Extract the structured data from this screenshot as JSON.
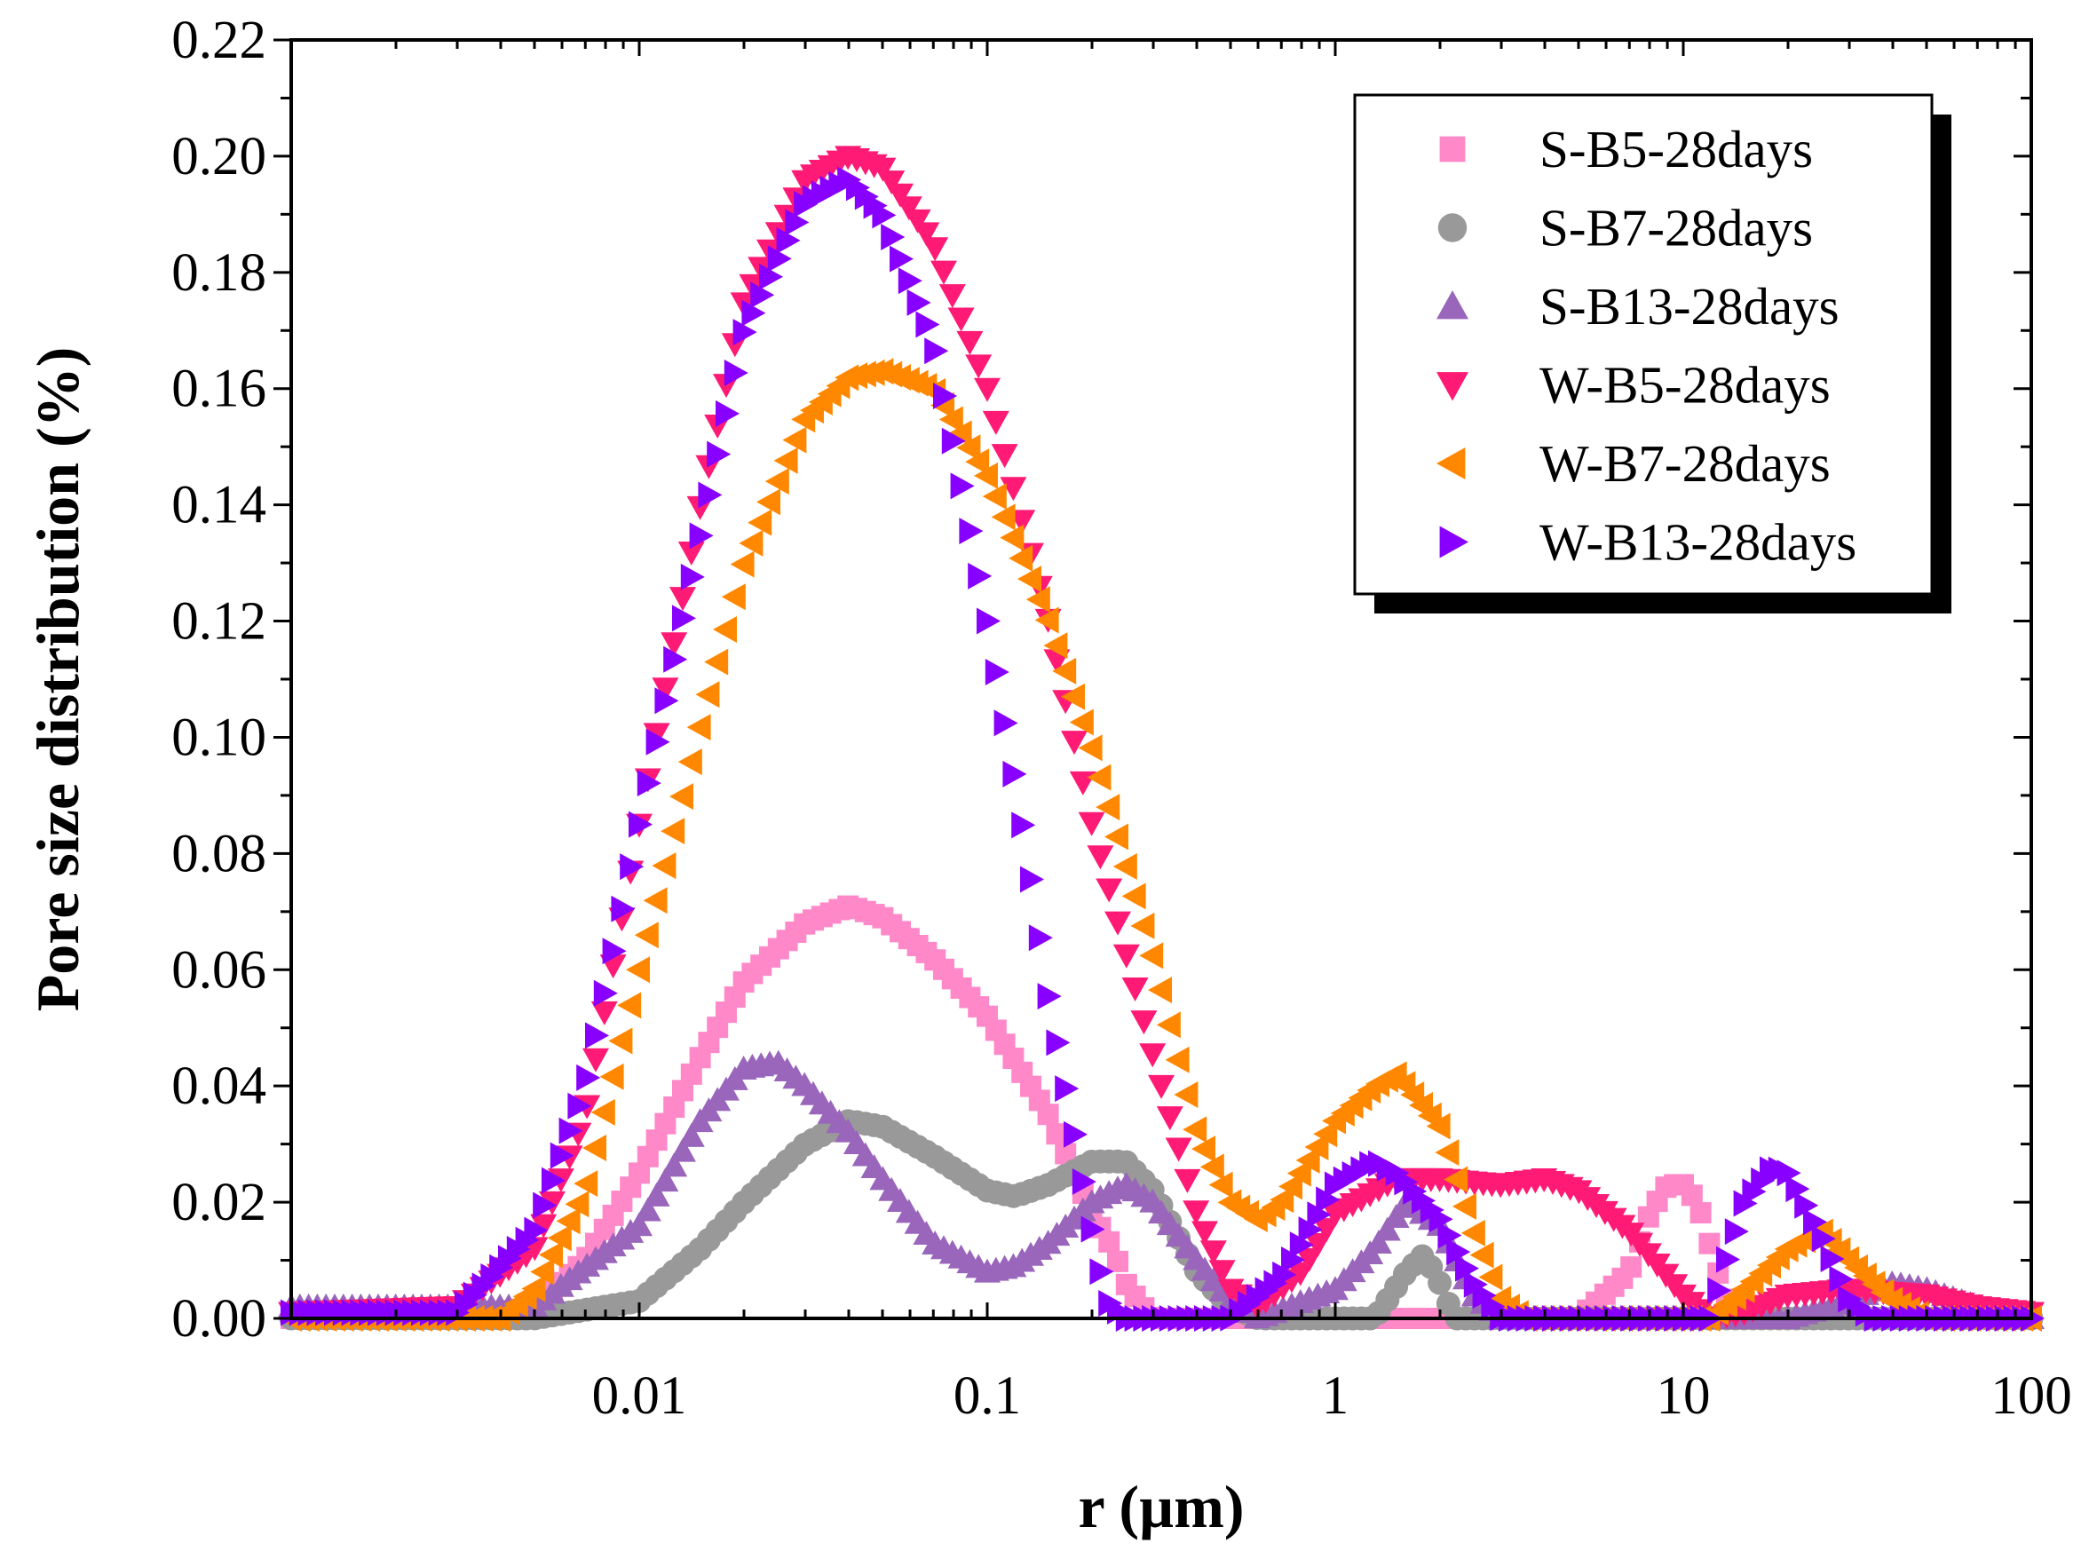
{
  "chart_data": {
    "type": "scatter",
    "xlabel": "r (µm)",
    "ylabel": "Pore size distribution (%)",
    "xscale": "log",
    "xlim": [
      0.001,
      100
    ],
    "ylim": [
      0,
      0.22
    ],
    "xticks": [
      {
        "value": 0.01,
        "label": "0.01"
      },
      {
        "value": 0.1,
        "label": "0.1"
      },
      {
        "value": 1,
        "label": "1"
      },
      {
        "value": 10,
        "label": "10"
      },
      {
        "value": 100,
        "label": "100"
      }
    ],
    "yticks": [
      {
        "value": 0.0,
        "label": "0.00"
      },
      {
        "value": 0.02,
        "label": "0.02"
      },
      {
        "value": 0.04,
        "label": "0.04"
      },
      {
        "value": 0.06,
        "label": "0.06"
      },
      {
        "value": 0.08,
        "label": "0.08"
      },
      {
        "value": 0.1,
        "label": "0.10"
      },
      {
        "value": 0.12,
        "label": "0.12"
      },
      {
        "value": 0.14,
        "label": "0.14"
      },
      {
        "value": 0.16,
        "label": "0.16"
      },
      {
        "value": 0.18,
        "label": "0.18"
      },
      {
        "value": 0.2,
        "label": "0.20"
      },
      {
        "value": 0.22,
        "label": "0.22"
      }
    ],
    "grid": false,
    "legend_position": "top-right",
    "series": [
      {
        "name": "S-B5-28days",
        "marker": "square",
        "color": "#ff88c8",
        "points": [
          [
            0.003,
            0
          ],
          [
            0.005,
            0.002
          ],
          [
            0.007,
            0.01
          ],
          [
            0.01,
            0.025
          ],
          [
            0.015,
            0.045
          ],
          [
            0.02,
            0.058
          ],
          [
            0.03,
            0.068
          ],
          [
            0.04,
            0.071
          ],
          [
            0.05,
            0.069
          ],
          [
            0.07,
            0.062
          ],
          [
            0.1,
            0.052
          ],
          [
            0.15,
            0.035
          ],
          [
            0.2,
            0.018
          ],
          [
            0.23,
            0.012
          ],
          [
            0.25,
            0.006
          ],
          [
            0.28,
            0.002
          ],
          [
            0.3,
            0
          ],
          [
            1,
            0
          ],
          [
            5,
            0
          ],
          [
            7,
            0.008
          ],
          [
            8,
            0.018
          ],
          [
            9,
            0.023
          ],
          [
            10,
            0.023
          ],
          [
            11,
            0.02
          ],
          [
            12,
            0.012
          ],
          [
            13,
            0.005
          ],
          [
            14,
            0
          ],
          [
            100,
            0
          ]
        ]
      },
      {
        "name": "S-B7-28days",
        "marker": "circle",
        "color": "#999999",
        "points": [
          [
            0.005,
            0
          ],
          [
            0.01,
            0.003
          ],
          [
            0.015,
            0.012
          ],
          [
            0.02,
            0.02
          ],
          [
            0.03,
            0.03
          ],
          [
            0.04,
            0.034
          ],
          [
            0.05,
            0.033
          ],
          [
            0.07,
            0.028
          ],
          [
            0.1,
            0.022
          ],
          [
            0.12,
            0.021
          ],
          [
            0.15,
            0.023
          ],
          [
            0.2,
            0.027
          ],
          [
            0.25,
            0.027
          ],
          [
            0.3,
            0.022
          ],
          [
            0.4,
            0.008
          ],
          [
            0.5,
            0.002
          ],
          [
            0.6,
            0
          ],
          [
            1.3,
            0
          ],
          [
            1.6,
            0.008
          ],
          [
            1.8,
            0.011
          ],
          [
            2,
            0.006
          ],
          [
            2.2,
            0
          ],
          [
            100,
            0
          ]
        ]
      },
      {
        "name": "S-B13-28days",
        "marker": "triangle-up",
        "color": "#9966bb",
        "points": [
          [
            0.005,
            0.002
          ],
          [
            0.01,
            0.016
          ],
          [
            0.015,
            0.034
          ],
          [
            0.02,
            0.043
          ],
          [
            0.025,
            0.044
          ],
          [
            0.03,
            0.04
          ],
          [
            0.04,
            0.032
          ],
          [
            0.05,
            0.024
          ],
          [
            0.07,
            0.013
          ],
          [
            0.1,
            0.008
          ],
          [
            0.12,
            0.009
          ],
          [
            0.15,
            0.013
          ],
          [
            0.2,
            0.02
          ],
          [
            0.25,
            0.023
          ],
          [
            0.3,
            0.02
          ],
          [
            0.4,
            0.01
          ],
          [
            0.5,
            0.003
          ],
          [
            0.6,
            0
          ],
          [
            1,
            0.005
          ],
          [
            1.3,
            0.012
          ],
          [
            1.6,
            0.02
          ],
          [
            2,
            0.016
          ],
          [
            2.5,
            0.004
          ],
          [
            3,
            0
          ],
          [
            20,
            0
          ],
          [
            30,
            0.003
          ],
          [
            40,
            0.006
          ],
          [
            50,
            0.005
          ],
          [
            70,
            0.002
          ],
          [
            100,
            0
          ]
        ]
      },
      {
        "name": "W-B5-28days",
        "marker": "triangle-down",
        "color": "#ff1a75",
        "points": [
          [
            0.001,
            0.001
          ],
          [
            0.003,
            0.002
          ],
          [
            0.005,
            0.012
          ],
          [
            0.007,
            0.035
          ],
          [
            0.01,
            0.085
          ],
          [
            0.015,
            0.14
          ],
          [
            0.02,
            0.175
          ],
          [
            0.03,
            0.196
          ],
          [
            0.04,
            0.2
          ],
          [
            0.05,
            0.198
          ],
          [
            0.07,
            0.185
          ],
          [
            0.1,
            0.16
          ],
          [
            0.15,
            0.12
          ],
          [
            0.2,
            0.085
          ],
          [
            0.3,
            0.045
          ],
          [
            0.4,
            0.018
          ],
          [
            0.5,
            0.005
          ],
          [
            0.6,
            0.002
          ],
          [
            0.8,
            0.008
          ],
          [
            1,
            0.018
          ],
          [
            1.5,
            0.024
          ],
          [
            2,
            0.024
          ],
          [
            3,
            0.023
          ],
          [
            4,
            0.024
          ],
          [
            5,
            0.022
          ],
          [
            7,
            0.015
          ],
          [
            10,
            0.004
          ],
          [
            12,
            0
          ],
          [
            15,
            0.001
          ],
          [
            20,
            0.004
          ],
          [
            30,
            0.005
          ],
          [
            50,
            0.004
          ],
          [
            70,
            0.002
          ],
          [
            100,
            0.001
          ]
        ]
      },
      {
        "name": "W-B7-28days",
        "marker": "triangle-left",
        "color": "#ff8800",
        "points": [
          [
            0.004,
            0
          ],
          [
            0.005,
            0.005
          ],
          [
            0.007,
            0.022
          ],
          [
            0.01,
            0.06
          ],
          [
            0.015,
            0.102
          ],
          [
            0.02,
            0.13
          ],
          [
            0.03,
            0.155
          ],
          [
            0.04,
            0.162
          ],
          [
            0.05,
            0.163
          ],
          [
            0.07,
            0.16
          ],
          [
            0.1,
            0.145
          ],
          [
            0.15,
            0.12
          ],
          [
            0.2,
            0.098
          ],
          [
            0.3,
            0.062
          ],
          [
            0.4,
            0.032
          ],
          [
            0.5,
            0.02
          ],
          [
            0.6,
            0.017
          ],
          [
            0.7,
            0.02
          ],
          [
            1,
            0.034
          ],
          [
            1.3,
            0.04
          ],
          [
            1.5,
            0.042
          ],
          [
            2,
            0.033
          ],
          [
            2.5,
            0.015
          ],
          [
            3,
            0.003
          ],
          [
            3.5,
            0
          ],
          [
            12,
            0
          ],
          [
            15,
            0.005
          ],
          [
            20,
            0.012
          ],
          [
            25,
            0.015
          ],
          [
            30,
            0.01
          ],
          [
            40,
            0.003
          ],
          [
            50,
            0
          ],
          [
            100,
            0
          ]
        ]
      },
      {
        "name": "W-B13-28days",
        "marker": "triangle-right",
        "color": "#8800ff",
        "points": [
          [
            0.001,
            0.001
          ],
          [
            0.003,
            0.001
          ],
          [
            0.005,
            0.015
          ],
          [
            0.007,
            0.04
          ],
          [
            0.01,
            0.085
          ],
          [
            0.015,
            0.135
          ],
          [
            0.02,
            0.17
          ],
          [
            0.03,
            0.192
          ],
          [
            0.04,
            0.196
          ],
          [
            0.05,
            0.19
          ],
          [
            0.07,
            0.168
          ],
          [
            0.1,
            0.12
          ],
          [
            0.13,
            0.08
          ],
          [
            0.15,
            0.055
          ],
          [
            0.18,
            0.03
          ],
          [
            0.2,
            0.015
          ],
          [
            0.22,
            0.003
          ],
          [
            0.25,
            0
          ],
          [
            0.5,
            0
          ],
          [
            0.7,
            0.007
          ],
          [
            1,
            0.023
          ],
          [
            1.3,
            0.027
          ],
          [
            1.5,
            0.025
          ],
          [
            2,
            0.017
          ],
          [
            2.5,
            0.006
          ],
          [
            3,
            0
          ],
          [
            12,
            0
          ],
          [
            13,
            0.008
          ],
          [
            15,
            0.02
          ],
          [
            18,
            0.026
          ],
          [
            20,
            0.025
          ],
          [
            25,
            0.014
          ],
          [
            30,
            0.003
          ],
          [
            35,
            0
          ],
          [
            100,
            0
          ]
        ]
      }
    ]
  }
}
